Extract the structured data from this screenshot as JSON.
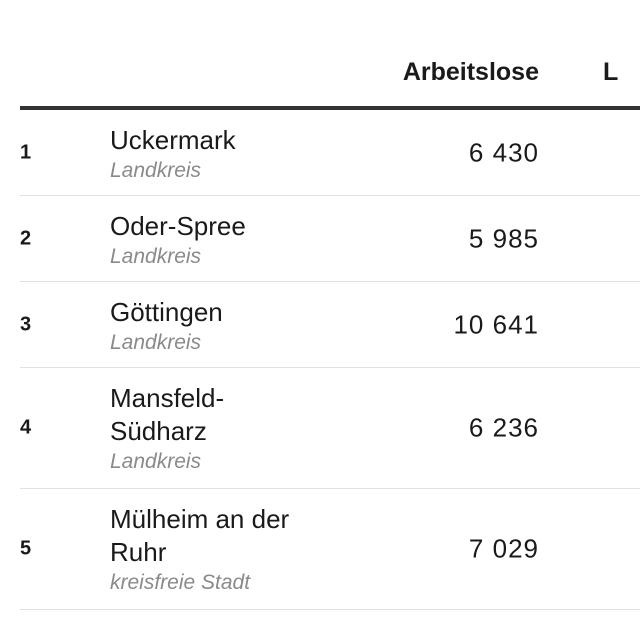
{
  "table": {
    "columns": {
      "region": "",
      "unemployed": "Arbeitslose",
      "next": "L"
    },
    "rows": [
      {
        "rank": "1",
        "name": "Uckermark",
        "type": "Landkreis",
        "value": "6 430"
      },
      {
        "rank": "2",
        "name": "Oder-Spree",
        "type": "Landkreis",
        "value": "5 985"
      },
      {
        "rank": "3",
        "name": "Göttingen",
        "type": "Landkreis",
        "value": "10 641"
      },
      {
        "rank": "4",
        "name": "Mansfeld-Südharz",
        "type": "Landkreis",
        "value": "6 236"
      },
      {
        "rank": "5",
        "name": "Mülheim an der Ruhr",
        "type": "kreisfreie Stadt",
        "value": "7 029"
      }
    ]
  }
}
